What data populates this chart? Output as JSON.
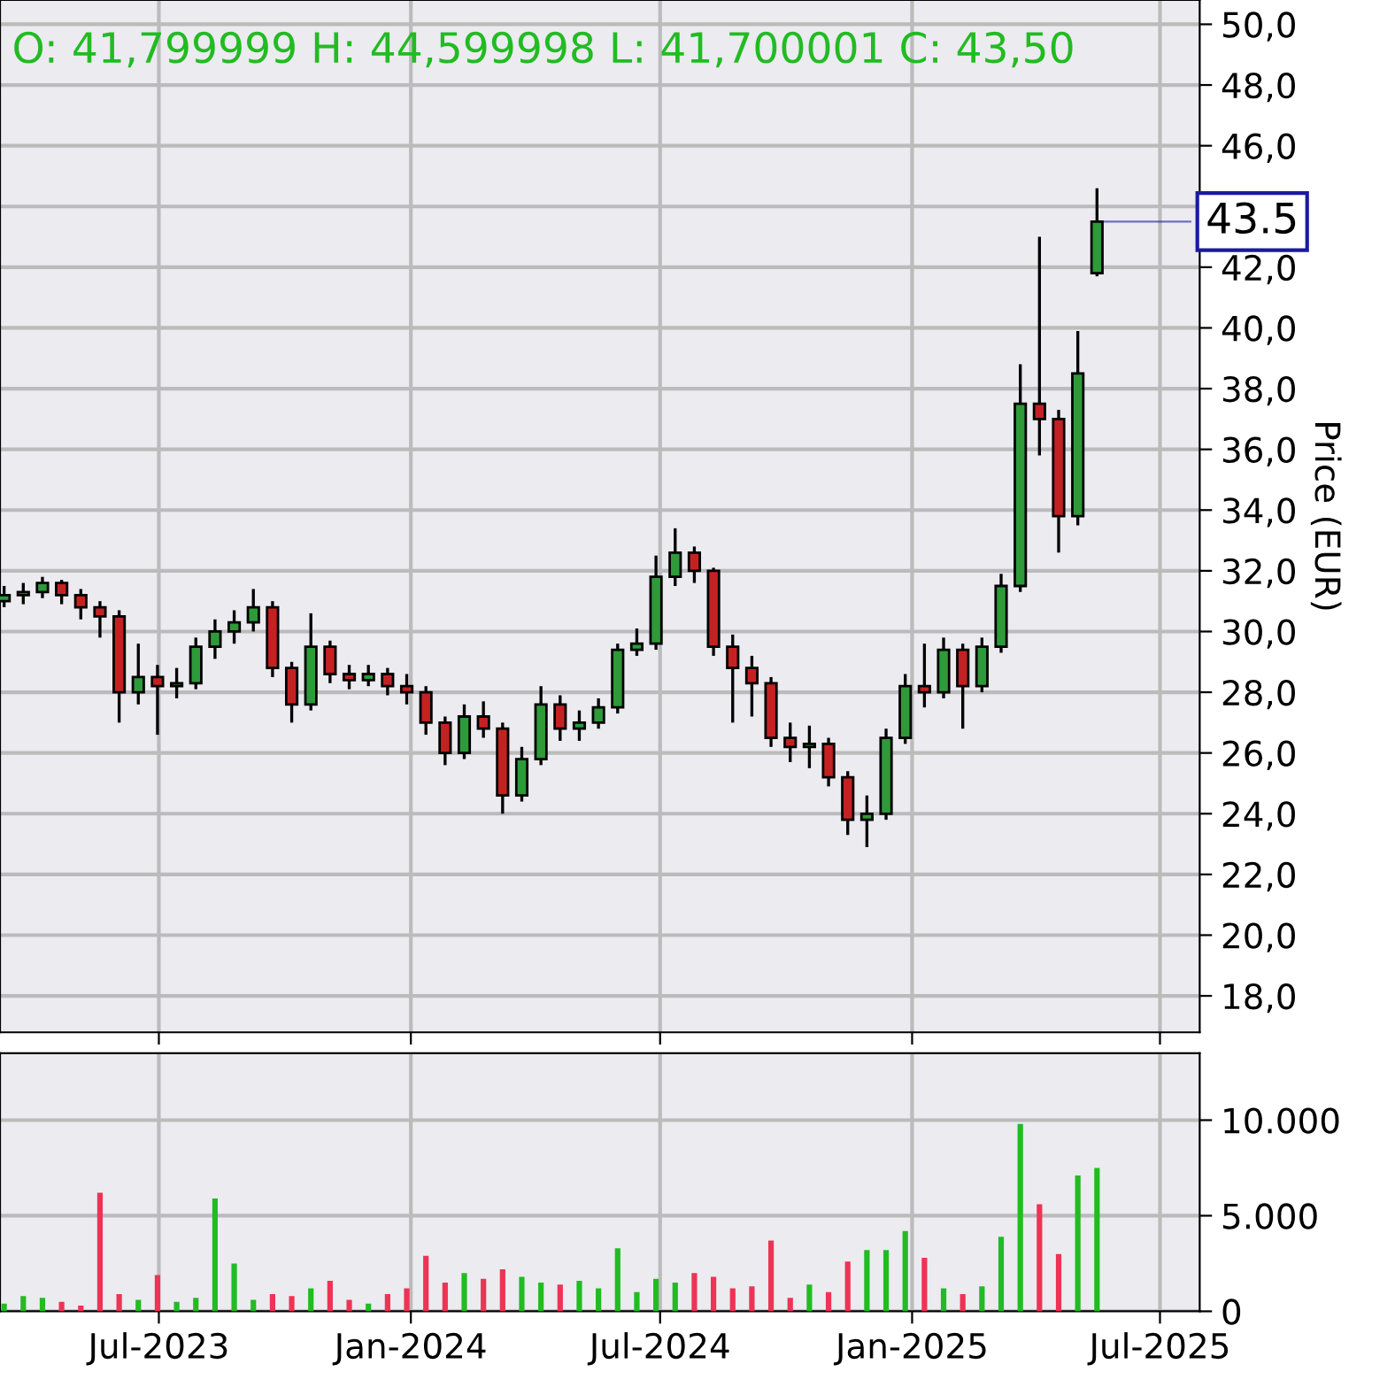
{
  "chart_data": [
    {
      "type": "candlestick",
      "ylabel": "Price (EUR)",
      "grid": true,
      "legend": false,
      "tick_labels": "y",
      "annotations": [
        "O: 41,799999 H: 44,599998 L: 41,700001 C: 43,50",
        {
          "text": "43.5",
          "x": "2025-05-16",
          "y": 43.5
        }
      ],
      "x": [
        "2023-03-10",
        "2023-03-24",
        "2023-04-07",
        "2023-04-21",
        "2023-05-05",
        "2023-05-19",
        "2023-06-02",
        "2023-06-16",
        "2023-06-30",
        "2023-07-14",
        "2023-07-28",
        "2023-08-11",
        "2023-08-25",
        "2023-09-08",
        "2023-09-22",
        "2023-10-06",
        "2023-10-20",
        "2023-11-03",
        "2023-11-17",
        "2023-12-01",
        "2023-12-15",
        "2023-12-29",
        "2024-01-12",
        "2024-01-26",
        "2024-02-09",
        "2024-02-23",
        "2024-03-08",
        "2024-03-22",
        "2024-04-05",
        "2024-04-19",
        "2024-05-03",
        "2024-05-17",
        "2024-05-31",
        "2024-06-14",
        "2024-06-28",
        "2024-07-12",
        "2024-07-26",
        "2024-08-09",
        "2024-08-23",
        "2024-09-06",
        "2024-09-20",
        "2024-10-04",
        "2024-10-18",
        "2024-11-01",
        "2024-11-15",
        "2024-11-29",
        "2024-12-13",
        "2024-12-27",
        "2025-01-10",
        "2025-01-24",
        "2025-02-07",
        "2025-02-21",
        "2025-03-07",
        "2025-03-21",
        "2025-04-04",
        "2025-04-18",
        "2025-05-02",
        "2025-05-16"
      ],
      "ohlc": [
        [
          31.0,
          31.5,
          30.8,
          31.2
        ],
        [
          31.2,
          31.6,
          30.9,
          31.3
        ],
        [
          31.3,
          31.8,
          31.1,
          31.6
        ],
        [
          31.6,
          31.7,
          30.9,
          31.2
        ],
        [
          31.2,
          31.4,
          30.4,
          30.8
        ],
        [
          30.8,
          31.0,
          29.8,
          30.5
        ],
        [
          30.5,
          30.7,
          27.0,
          28.0
        ],
        [
          28.0,
          29.6,
          27.6,
          28.5
        ],
        [
          28.5,
          28.9,
          26.6,
          28.2
        ],
        [
          28.2,
          28.8,
          27.8,
          28.3
        ],
        [
          28.3,
          29.8,
          28.1,
          29.5
        ],
        [
          29.5,
          30.4,
          29.1,
          30.0
        ],
        [
          30.0,
          30.7,
          29.6,
          30.3
        ],
        [
          30.3,
          31.4,
          30.0,
          30.8
        ],
        [
          30.8,
          31.0,
          28.5,
          28.8
        ],
        [
          28.8,
          29.0,
          27.0,
          27.6
        ],
        [
          27.6,
          30.6,
          27.4,
          29.5
        ],
        [
          29.5,
          29.7,
          28.3,
          28.6
        ],
        [
          28.6,
          28.9,
          28.1,
          28.4
        ],
        [
          28.4,
          28.9,
          28.2,
          28.6
        ],
        [
          28.6,
          28.8,
          27.9,
          28.2
        ],
        [
          28.2,
          28.6,
          27.6,
          28.0
        ],
        [
          28.0,
          28.2,
          26.6,
          27.0
        ],
        [
          27.0,
          27.2,
          25.6,
          26.0
        ],
        [
          26.0,
          27.6,
          25.8,
          27.2
        ],
        [
          27.2,
          27.7,
          26.5,
          26.8
        ],
        [
          26.8,
          27.0,
          24.0,
          24.6
        ],
        [
          24.6,
          26.2,
          24.4,
          25.8
        ],
        [
          25.8,
          28.2,
          25.6,
          27.6
        ],
        [
          27.6,
          27.9,
          26.4,
          26.8
        ],
        [
          26.8,
          27.4,
          26.4,
          27.0
        ],
        [
          27.0,
          27.8,
          26.8,
          27.5
        ],
        [
          27.5,
          29.6,
          27.3,
          29.4
        ],
        [
          29.4,
          30.1,
          29.2,
          29.6
        ],
        [
          29.6,
          32.5,
          29.4,
          31.8
        ],
        [
          31.8,
          33.4,
          31.5,
          32.6
        ],
        [
          32.6,
          32.8,
          31.6,
          32.0
        ],
        [
          32.0,
          32.1,
          29.2,
          29.5
        ],
        [
          29.5,
          29.9,
          27.0,
          28.8
        ],
        [
          28.8,
          29.2,
          27.2,
          28.3
        ],
        [
          28.3,
          28.5,
          26.2,
          26.5
        ],
        [
          26.5,
          27.0,
          25.7,
          26.2
        ],
        [
          26.2,
          26.9,
          25.5,
          26.3
        ],
        [
          26.3,
          26.5,
          24.9,
          25.2
        ],
        [
          25.2,
          25.4,
          23.3,
          23.8
        ],
        [
          23.8,
          24.6,
          22.9,
          24.0
        ],
        [
          24.0,
          26.8,
          23.8,
          26.5
        ],
        [
          26.5,
          28.6,
          26.3,
          28.2
        ],
        [
          28.2,
          29.6,
          27.5,
          28.0
        ],
        [
          28.0,
          29.8,
          27.8,
          29.4
        ],
        [
          29.4,
          29.6,
          26.8,
          28.2
        ],
        [
          28.2,
          29.8,
          28.0,
          29.5
        ],
        [
          29.5,
          31.9,
          29.3,
          31.5
        ],
        [
          31.5,
          38.8,
          31.3,
          37.5
        ],
        [
          37.5,
          43.0,
          35.8,
          37.0
        ],
        [
          37.0,
          37.3,
          32.6,
          33.8
        ],
        [
          33.8,
          39.9,
          33.5,
          38.5
        ],
        [
          41.8,
          44.6,
          41.7,
          43.5
        ]
      ],
      "xlim": [
        "2023-03-07",
        "2025-07-30"
      ],
      "xticks": [
        {
          "value": "2023-07-01",
          "label": null
        },
        {
          "value": "2024-01-01",
          "label": null
        },
        {
          "value": "2024-07-01",
          "label": null
        },
        {
          "value": "2025-01-01",
          "label": null
        },
        {
          "value": "2025-07-01",
          "label": null
        }
      ],
      "ylim": [
        16.8,
        50.8
      ],
      "yticks": [
        {
          "value": 18,
          "label": "18,0"
        },
        {
          "value": 20,
          "label": "20,0"
        },
        {
          "value": 22,
          "label": "22,0"
        },
        {
          "value": 24,
          "label": "24,0"
        },
        {
          "value": 26,
          "label": "26,0"
        },
        {
          "value": 28,
          "label": "28,0"
        },
        {
          "value": 30,
          "label": "30,0"
        },
        {
          "value": 32,
          "label": "32,0"
        },
        {
          "value": 34,
          "label": "34,0"
        },
        {
          "value": 36,
          "label": "36,0"
        },
        {
          "value": 38,
          "label": "38,0"
        },
        {
          "value": 40,
          "label": "40,0"
        },
        {
          "value": 42,
          "label": "42,0"
        },
        {
          "value": 44,
          "label": null
        },
        {
          "value": 46,
          "label": "46,0"
        },
        {
          "value": 48,
          "label": "48,0"
        },
        {
          "value": 50,
          "label": "50,0"
        }
      ]
    },
    {
      "type": "bar",
      "grid": true,
      "legend": false,
      "x": [
        "2023-03-10",
        "2023-03-24",
        "2023-04-07",
        "2023-04-21",
        "2023-05-05",
        "2023-05-19",
        "2023-06-02",
        "2023-06-16",
        "2023-06-30",
        "2023-07-14",
        "2023-07-28",
        "2023-08-11",
        "2023-08-25",
        "2023-09-08",
        "2023-09-22",
        "2023-10-06",
        "2023-10-20",
        "2023-11-03",
        "2023-11-17",
        "2023-12-01",
        "2023-12-15",
        "2023-12-29",
        "2024-01-12",
        "2024-01-26",
        "2024-02-09",
        "2024-02-23",
        "2024-03-08",
        "2024-03-22",
        "2024-04-05",
        "2024-04-19",
        "2024-05-03",
        "2024-05-17",
        "2024-05-31",
        "2024-06-14",
        "2024-06-28",
        "2024-07-12",
        "2024-07-26",
        "2024-08-09",
        "2024-08-23",
        "2024-09-06",
        "2024-09-20",
        "2024-10-04",
        "2024-10-18",
        "2024-11-01",
        "2024-11-15",
        "2024-11-29",
        "2024-12-13",
        "2024-12-27",
        "2025-01-10",
        "2025-01-24",
        "2025-02-07",
        "2025-02-21",
        "2025-03-07",
        "2025-03-21",
        "2025-04-04",
        "2025-04-18",
        "2025-05-02",
        "2025-05-16"
      ],
      "values": [
        400,
        800,
        700,
        500,
        300,
        6200,
        900,
        600,
        1900,
        500,
        700,
        5900,
        2500,
        600,
        900,
        800,
        1200,
        1600,
        600,
        400,
        900,
        1200,
        2900,
        1500,
        2000,
        1700,
        2200,
        1800,
        1500,
        1400,
        1600,
        1200,
        3300,
        1000,
        1700,
        1500,
        2000,
        1800,
        1200,
        1300,
        3700,
        700,
        1400,
        1000,
        2600,
        3200,
        3200,
        4200,
        2800,
        1200,
        900,
        1300,
        3900,
        9800,
        5600,
        3000,
        7100,
        7500
      ],
      "colors": [
        "#22bb22",
        "#22bb22",
        "#22bb22",
        "#ee3355",
        "#ee3355",
        "#ee3355",
        "#ee3355",
        "#22bb22",
        "#ee3355",
        "#22bb22",
        "#22bb22",
        "#22bb22",
        "#22bb22",
        "#22bb22",
        "#ee3355",
        "#ee3355",
        "#22bb22",
        "#ee3355",
        "#ee3355",
        "#22bb22",
        "#ee3355",
        "#ee3355",
        "#ee3355",
        "#ee3355",
        "#22bb22",
        "#ee3355",
        "#ee3355",
        "#22bb22",
        "#22bb22",
        "#ee3355",
        "#22bb22",
        "#22bb22",
        "#22bb22",
        "#22bb22",
        "#22bb22",
        "#22bb22",
        "#ee3355",
        "#ee3355",
        "#ee3355",
        "#ee3355",
        "#ee3355",
        "#ee3355",
        "#22bb22",
        "#ee3355",
        "#ee3355",
        "#22bb22",
        "#22bb22",
        "#22bb22",
        "#ee3355",
        "#22bb22",
        "#ee3355",
        "#22bb22",
        "#22bb22",
        "#22bb22",
        "#ee3355",
        "#ee3355",
        "#22bb22",
        "#22bb22"
      ],
      "xlim": [
        "2023-03-07",
        "2025-07-30"
      ],
      "xticks": [
        {
          "value": "2023-07-01",
          "label": "Jul-2023"
        },
        {
          "value": "2024-01-01",
          "label": "Jan-2024"
        },
        {
          "value": "2024-07-01",
          "label": "Jul-2024"
        },
        {
          "value": "2025-01-01",
          "label": "Jan-2025"
        },
        {
          "value": "2025-07-01",
          "label": "Jul-2025"
        }
      ],
      "ylim": [
        0,
        13500
      ],
      "yticks": [
        {
          "value": 0,
          "label": "0"
        },
        {
          "value": 5000,
          "label": "5.000"
        },
        {
          "value": 10000,
          "label": "10.000"
        }
      ]
    }
  ]
}
